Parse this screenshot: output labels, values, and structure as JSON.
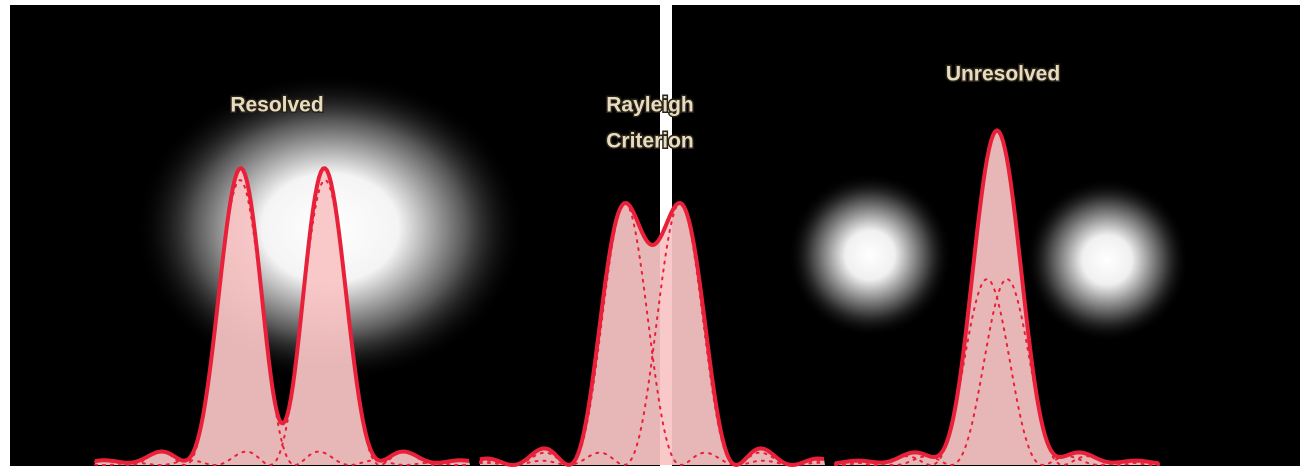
{
  "panels": [
    {
      "label": [
        "Resolved"
      ]
    },
    {
      "label": [
        "Rayleigh",
        "Criterion"
      ]
    },
    {
      "label": [
        "Unresolved"
      ]
    }
  ]
}
